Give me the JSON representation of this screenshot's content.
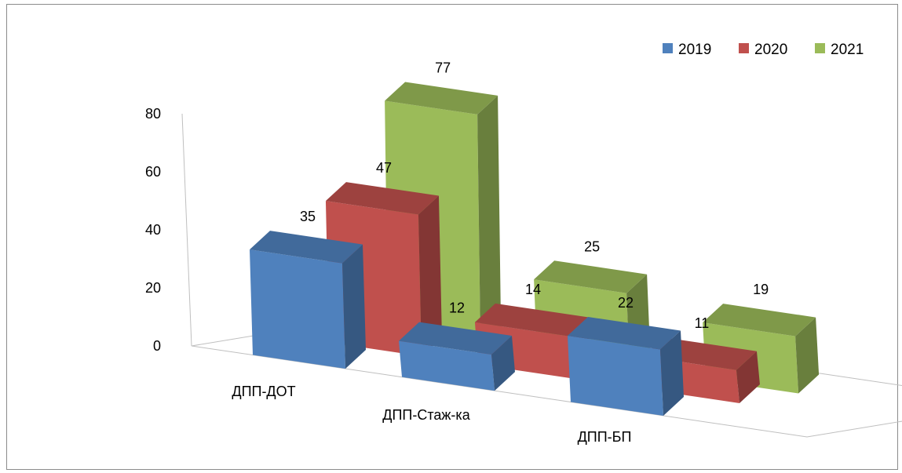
{
  "chart_data": {
    "type": "bar",
    "variant": "3d-clustered-columns",
    "title": "",
    "xlabel": "",
    "ylabel": "",
    "categories": [
      "ДПП-ДОТ",
      "ДПП-Стаж-ка",
      "ДПП-БП"
    ],
    "series": [
      {
        "name": "2019",
        "values": [
          35,
          12,
          22
        ],
        "color": "#4f81bd"
      },
      {
        "name": "2020",
        "values": [
          47,
          14,
          11
        ],
        "color": "#c0504d"
      },
      {
        "name": "2021",
        "values": [
          77,
          25,
          19
        ],
        "color": "#9bbb59"
      }
    ],
    "ylim": [
      0,
      80
    ],
    "yticks": [
      "0",
      "20",
      "40",
      "60",
      "80"
    ],
    "grid": false,
    "legend": {
      "position": "top-right"
    },
    "data_labels": true
  }
}
